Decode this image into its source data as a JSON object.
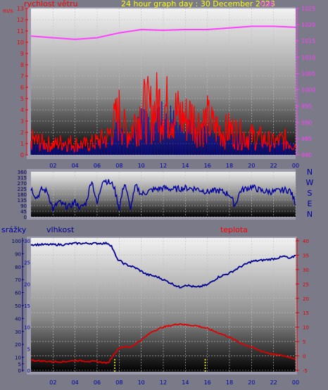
{
  "header": {
    "left_label": "rychlost větru",
    "left_unit": "m/s",
    "title": "24 hour graph day : 30 December 2023",
    "right_label": "tlak"
  },
  "direction_labels": [
    "N",
    "W",
    "S",
    "E",
    "N"
  ],
  "bottom_header": {
    "left_label": "srážky",
    "mid_label": "vlhkost",
    "right_label": "teplota"
  },
  "colors": {
    "wind": "#ff0000",
    "wind_gust_bars": "#1010b0",
    "pressure": "#ff40ff",
    "direction": "#0000a0",
    "humidity": "#000090",
    "temperature": "#e00000",
    "rain_marks": "#ffff00",
    "title": "#ffff00",
    "left_axis": "#ff0000",
    "right_axis": "#ff40ff",
    "rain_axis": "#0000a0"
  },
  "chart_data": [
    {
      "type": "line",
      "title": "24 hour graph day : 30 December 2023",
      "xlabel": "",
      "x_ticks": [
        "02",
        "04",
        "06",
        "08",
        "10",
        "12",
        "14",
        "16",
        "18",
        "20",
        "22",
        "00"
      ],
      "y_left_label": "rychlost větru",
      "y_left_ticks": [
        0,
        1,
        2,
        3,
        4,
        5,
        6,
        7,
        8,
        9,
        10,
        11,
        12,
        13
      ],
      "ylim_left": [
        0,
        13
      ],
      "y_right_label": "tlak",
      "y_right_ticks": [
        980,
        985,
        990,
        995,
        1000,
        1005,
        1010,
        1015,
        1020,
        1025
      ],
      "ylim_right": [
        980,
        1025
      ],
      "series": [
        {
          "name": "rychlost větru",
          "axis": "left",
          "x": [
            0,
            1,
            2,
            3,
            4,
            5,
            6,
            7,
            7.5,
            8,
            8.5,
            9,
            9.5,
            10,
            10.5,
            11,
            11.5,
            12,
            12.5,
            13,
            13.5,
            14,
            14.5,
            15,
            15.5,
            16,
            16.5,
            17,
            17.5,
            18,
            19,
            20,
            21,
            22,
            23,
            24
          ],
          "values": [
            1.5,
            1.2,
            1.0,
            1.3,
            1.1,
            1.0,
            1.3,
            1.8,
            3.0,
            4.0,
            2.5,
            2.2,
            3.5,
            4.2,
            4.5,
            4.0,
            5.0,
            4.8,
            4.5,
            4.2,
            3.8,
            3.5,
            3.8,
            3.2,
            3.0,
            3.4,
            2.8,
            2.5,
            2.2,
            2.5,
            2.0,
            1.8,
            1.6,
            1.2,
            1.5,
            1.0
          ]
        },
        {
          "name": "tlak",
          "axis": "right",
          "x": [
            0,
            2,
            4,
            6,
            8,
            10,
            12,
            14,
            16,
            18,
            20,
            22,
            24
          ],
          "values": [
            1016.5,
            1016.0,
            1015.5,
            1016.0,
            1017.5,
            1018.5,
            1018.3,
            1018.5,
            1018.5,
            1019.0,
            1019.5,
            1019.5,
            1019.2
          ]
        }
      ]
    },
    {
      "type": "line",
      "x_ticks": [],
      "y_ticks": [
        0,
        45,
        90,
        135,
        180,
        225,
        270,
        315,
        360
      ],
      "ylim": [
        0,
        360
      ],
      "series": [
        {
          "name": "",
          "x": [
            0,
            0.5,
            1,
            1.5,
            2,
            2.5,
            3,
            3.5,
            4,
            4.5,
            5,
            5.5,
            6,
            6.5,
            7,
            7.5,
            8,
            8.5,
            9,
            9.5,
            10,
            11,
            12,
            13,
            14,
            15,
            16,
            17,
            18,
            18.5,
            19,
            20,
            21,
            22,
            23,
            23.5,
            24
          ],
          "values": [
            230,
            150,
            220,
            200,
            60,
            120,
            90,
            80,
            120,
            70,
            110,
            300,
            100,
            300,
            280,
            250,
            70,
            280,
            60,
            250,
            180,
            215,
            230,
            220,
            230,
            225,
            200,
            210,
            180,
            90,
            210,
            240,
            205,
            200,
            215,
            210,
            110
          ]
        }
      ]
    },
    {
      "type": "line",
      "x_ticks": [
        "02",
        "04",
        "06",
        "08",
        "10",
        "12",
        "14",
        "16",
        "18",
        "20",
        "22",
        "00"
      ],
      "y_ticks_rain": [
        0,
        5,
        10,
        15,
        20,
        25,
        30
      ],
      "ylim_rain": [
        0,
        30
      ],
      "y_ticks_humidity": [
        0,
        5,
        10,
        20,
        30,
        40,
        50,
        60,
        70,
        80,
        90,
        100
      ],
      "ylim_humidity": [
        0,
        100
      ],
      "y_ticks_temp": [
        -5,
        0,
        5,
        10,
        15,
        20,
        25,
        30,
        35,
        40
      ],
      "ylim_temp": [
        -5,
        40
      ],
      "series": [
        {
          "name": "vlhkost",
          "axis": "humidity",
          "x": [
            0,
            1,
            2,
            3,
            4,
            5,
            6,
            7,
            7.3,
            7.8,
            8.5,
            9.5,
            10.5,
            11.5,
            12.5,
            13.5,
            14,
            15,
            16,
            17,
            18,
            19,
            20,
            21,
            22,
            23,
            23.5,
            24
          ],
          "values": [
            97,
            97,
            97,
            97,
            98,
            98,
            98,
            98,
            96,
            86,
            82,
            79,
            74,
            72,
            68,
            64,
            66,
            64,
            66,
            72,
            75,
            80,
            84,
            85,
            86,
            88,
            86,
            89
          ]
        },
        {
          "name": "teplota",
          "axis": "temp",
          "x": [
            0,
            1,
            2,
            3,
            4,
            5,
            6,
            7,
            7.5,
            8,
            8.5,
            9,
            10,
            11,
            12,
            13,
            13.5,
            14,
            15,
            16,
            17,
            18,
            19,
            20,
            21,
            22,
            23,
            24
          ],
          "values": [
            -1.5,
            -1.8,
            -2.0,
            -2.0,
            -1.6,
            -1.8,
            -2.0,
            -2.5,
            0.5,
            2.8,
            3.2,
            3.0,
            5.5,
            8.5,
            10.0,
            10.8,
            11.2,
            10.8,
            10.5,
            9.5,
            8.0,
            6.5,
            4.5,
            3.0,
            1.5,
            0.5,
            0.0,
            -1.0
          ]
        },
        {
          "name": "srážky",
          "axis": "rain",
          "x": [
            7.6,
            15.8
          ],
          "values": [
            0.6,
            0.6
          ]
        }
      ]
    }
  ]
}
